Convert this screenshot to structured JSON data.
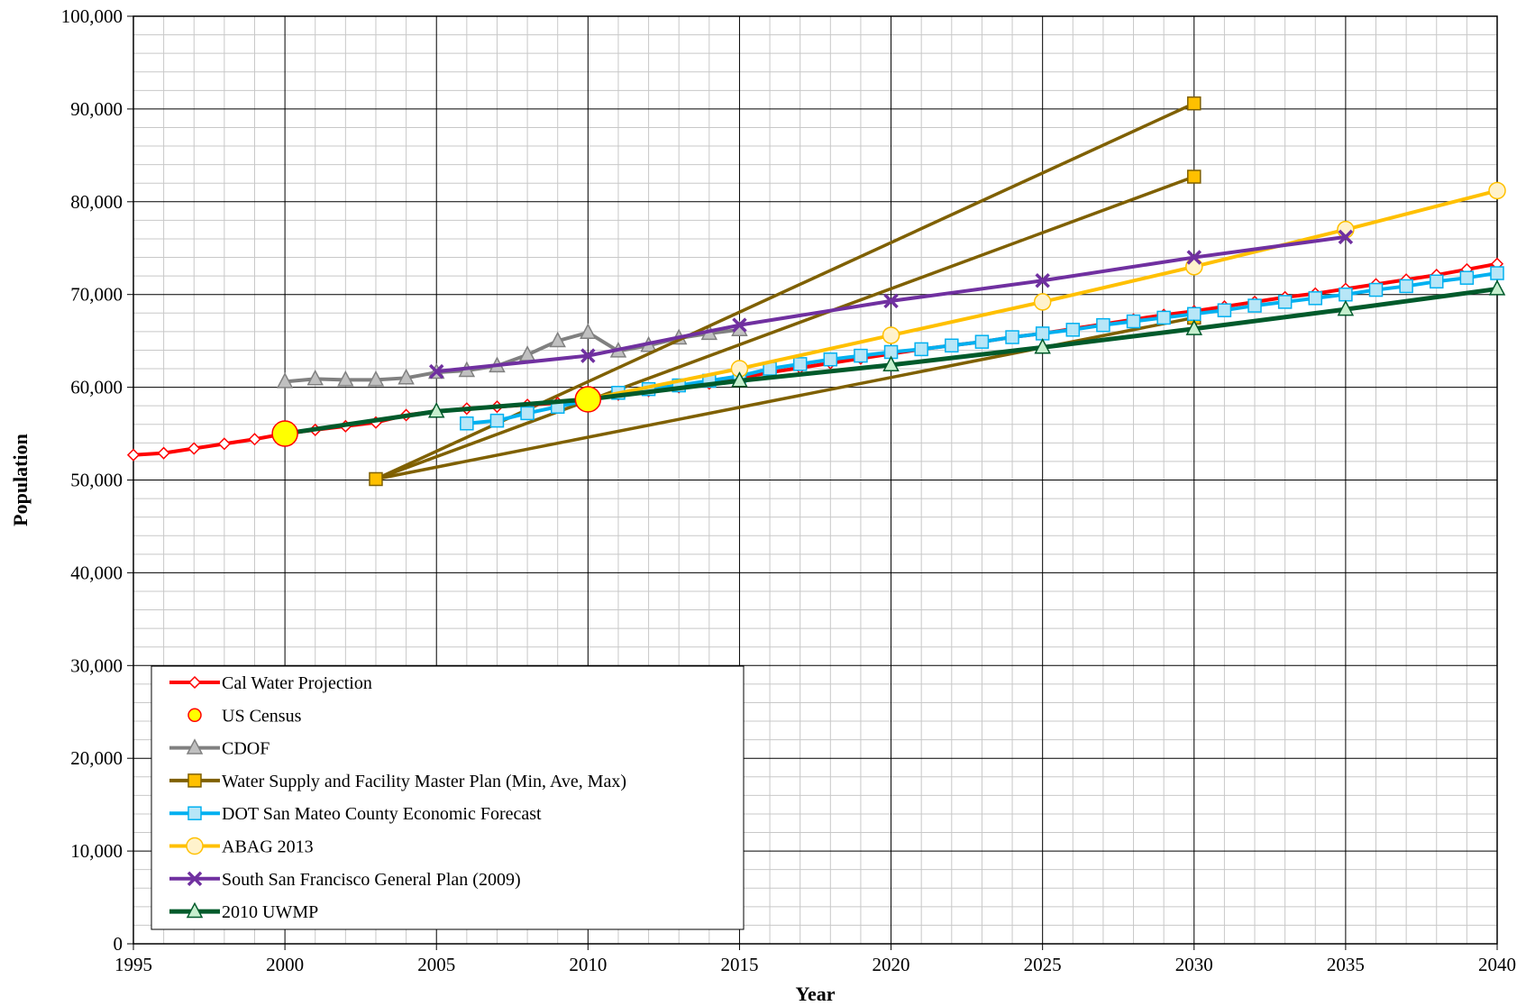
{
  "chart_data": {
    "type": "line",
    "xlabel": "Year",
    "ylabel": "Population",
    "xlim": [
      1995,
      2040
    ],
    "ylim": [
      0,
      100000
    ],
    "x_ticks": [
      "1995",
      "2000",
      "2005",
      "2010",
      "2015",
      "2020",
      "2025",
      "2030",
      "2035",
      "2040"
    ],
    "y_ticks": [
      "0",
      "10,000",
      "20,000",
      "30,000",
      "40,000",
      "50,000",
      "60,000",
      "70,000",
      "80,000",
      "90,000",
      "100,000"
    ],
    "grid": true,
    "legend_position": "bottom-left",
    "series": [
      {
        "name": "Cal Water Projection",
        "color": "#ff0000",
        "marker": "diamond",
        "points": [
          [
            1995,
            52700
          ],
          [
            1996,
            52900
          ],
          [
            1997,
            53400
          ],
          [
            1998,
            53900
          ],
          [
            1999,
            54400
          ],
          [
            2000,
            55000
          ],
          [
            2001,
            55400
          ],
          [
            2002,
            55800
          ],
          [
            2003,
            56200
          ],
          [
            2004,
            57000
          ],
          [
            2005,
            57400
          ],
          [
            2006,
            57700
          ],
          [
            2007,
            57900
          ],
          [
            2008,
            58100
          ],
          [
            2009,
            58300
          ],
          [
            2010,
            58600
          ],
          [
            2011,
            59200
          ],
          [
            2012,
            59600
          ],
          [
            2013,
            60000
          ],
          [
            2014,
            60400
          ],
          [
            2015,
            61000
          ],
          [
            2016,
            61600
          ],
          [
            2017,
            62100
          ],
          [
            2018,
            62600
          ],
          [
            2019,
            63100
          ],
          [
            2020,
            63600
          ],
          [
            2021,
            64100
          ],
          [
            2022,
            64500
          ],
          [
            2023,
            64900
          ],
          [
            2024,
            65400
          ],
          [
            2025,
            65800
          ],
          [
            2026,
            66300
          ],
          [
            2027,
            66800
          ],
          [
            2028,
            67300
          ],
          [
            2029,
            67800
          ],
          [
            2030,
            68200
          ],
          [
            2031,
            68700
          ],
          [
            2032,
            69200
          ],
          [
            2033,
            69700
          ],
          [
            2034,
            70100
          ],
          [
            2035,
            70600
          ],
          [
            2036,
            71100
          ],
          [
            2037,
            71600
          ],
          [
            2038,
            72100
          ],
          [
            2039,
            72700
          ],
          [
            2040,
            73300
          ]
        ]
      },
      {
        "name": "US Census",
        "color": "#ff0000",
        "fill": "#ffff00",
        "marker": "circle-large",
        "points": [
          [
            2000,
            55000
          ],
          [
            2010,
            58700
          ]
        ]
      },
      {
        "name": "CDOF",
        "color": "#808080",
        "marker": "triangle",
        "points": [
          [
            2000,
            60600
          ],
          [
            2001,
            60900
          ],
          [
            2002,
            60800
          ],
          [
            2003,
            60800
          ],
          [
            2004,
            61000
          ],
          [
            2005,
            61600
          ],
          [
            2006,
            61800
          ],
          [
            2007,
            62300
          ],
          [
            2008,
            63500
          ],
          [
            2009,
            65000
          ],
          [
            2010,
            65900
          ],
          [
            2011,
            63900
          ],
          [
            2012,
            64500
          ],
          [
            2013,
            65300
          ],
          [
            2014,
            65800
          ],
          [
            2015,
            66200
          ]
        ]
      },
      {
        "name": "Water Supply and Facility Master Plan (Min, Ave, Max)",
        "color": "#7f6000",
        "fill": "#ffc000",
        "marker": "square",
        "lines": [
          [
            [
              2003,
              50100
            ],
            [
              2030,
              90600
            ]
          ],
          [
            [
              2003,
              50100
            ],
            [
              2030,
              82700
            ]
          ],
          [
            [
              2003,
              50100
            ],
            [
              2030,
              67500
            ]
          ]
        ]
      },
      {
        "name": "DOT San Mateo County Economic Forecast",
        "color": "#00b0f0",
        "fill": "#b7e6f7",
        "marker": "square",
        "points": [
          [
            2006,
            56100
          ],
          [
            2007,
            56400
          ],
          [
            2008,
            57200
          ],
          [
            2009,
            57900
          ],
          [
            2010,
            58600
          ],
          [
            2011,
            59400
          ],
          [
            2012,
            59800
          ],
          [
            2013,
            60200
          ],
          [
            2014,
            60700
          ],
          [
            2015,
            61200
          ],
          [
            2016,
            62000
          ],
          [
            2017,
            62500
          ],
          [
            2018,
            63000
          ],
          [
            2019,
            63400
          ],
          [
            2020,
            63800
          ],
          [
            2021,
            64100
          ],
          [
            2022,
            64500
          ],
          [
            2023,
            64900
          ],
          [
            2024,
            65400
          ],
          [
            2025,
            65800
          ],
          [
            2026,
            66200
          ],
          [
            2027,
            66700
          ],
          [
            2028,
            67100
          ],
          [
            2029,
            67500
          ],
          [
            2030,
            67900
          ],
          [
            2031,
            68300
          ],
          [
            2032,
            68800
          ],
          [
            2033,
            69200
          ],
          [
            2034,
            69600
          ],
          [
            2035,
            70000
          ],
          [
            2036,
            70500
          ],
          [
            2037,
            70900
          ],
          [
            2038,
            71400
          ],
          [
            2039,
            71800
          ],
          [
            2040,
            72300
          ]
        ]
      },
      {
        "name": "ABAG 2013",
        "color": "#ffc000",
        "fill": "#fff2cc",
        "marker": "circle",
        "points": [
          [
            2010,
            58700
          ],
          [
            2015,
            62000
          ],
          [
            2020,
            65600
          ],
          [
            2025,
            69200
          ],
          [
            2030,
            73000
          ],
          [
            2035,
            77000
          ],
          [
            2040,
            81200
          ]
        ]
      },
      {
        "name": "South San Francisco General Plan (2009)",
        "color": "#7030a0",
        "marker": "x",
        "points": [
          [
            2005,
            61700
          ],
          [
            2010,
            63400
          ],
          [
            2015,
            66700
          ],
          [
            2020,
            69300
          ],
          [
            2025,
            71500
          ],
          [
            2030,
            74000
          ],
          [
            2035,
            76200
          ]
        ]
      },
      {
        "name": "2010 UWMP",
        "color": "#005a2b",
        "fill": "#c6efce",
        "marker": "triangle",
        "points": [
          [
            2000,
            55000
          ],
          [
            2005,
            57400
          ],
          [
            2010,
            58700
          ],
          [
            2015,
            60700
          ],
          [
            2020,
            62400
          ],
          [
            2025,
            64300
          ],
          [
            2030,
            66300
          ],
          [
            2035,
            68400
          ],
          [
            2040,
            70600
          ]
        ]
      }
    ]
  }
}
